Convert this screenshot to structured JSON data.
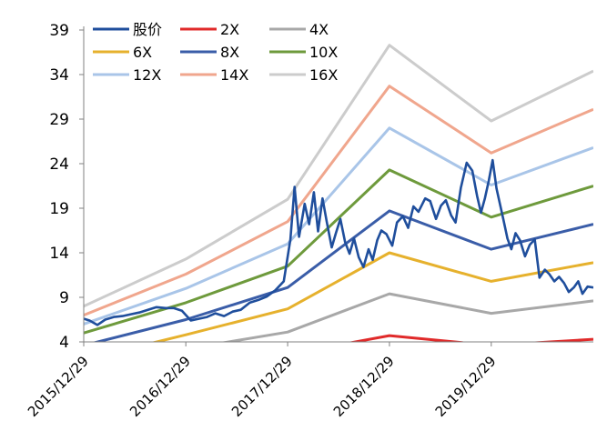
{
  "chart_data": {
    "type": "line",
    "title": "",
    "xlabel": "",
    "ylabel": "",
    "ylim": [
      4,
      39
    ],
    "yticks": [
      4,
      9,
      14,
      19,
      24,
      29,
      34,
      39
    ],
    "xticks": [
      "2015/12/29",
      "2016/12/29",
      "2017/12/29",
      "2018/12/29",
      "2019/12/29"
    ],
    "xlim": [
      "2015/12/29",
      "2020/12/29"
    ],
    "grid": false,
    "legend_position": "top-left",
    "price_series": {
      "name": "股价",
      "color": "#1f4e9c",
      "x": [
        "2015/12/29",
        "2016/01/19",
        "2016/02/16",
        "2016/03/15",
        "2016/04/15",
        "2016/05/16",
        "2016/06/15",
        "2016/07/15",
        "2016/08/15",
        "2016/09/15",
        "2016/10/17",
        "2016/11/15",
        "2016/12/15",
        "2017/01/16",
        "2017/02/15",
        "2017/03/15",
        "2017/04/14",
        "2017/05/15",
        "2017/06/15",
        "2017/07/14",
        "2017/08/15",
        "2017/09/15",
        "2017/10/16",
        "2017/11/15",
        "2017/12/15",
        "2018/01/08",
        "2018/01/23",
        "2018/02/08",
        "2018/02/28",
        "2018/03/16",
        "2018/04/02",
        "2018/04/17",
        "2018/05/03",
        "2018/05/18",
        "2018/06/05",
        "2018/06/20",
        "2018/07/06",
        "2018/07/23",
        "2018/08/08",
        "2018/08/24",
        "2018/09/10",
        "2018/09/27",
        "2018/10/15",
        "2018/10/30",
        "2018/11/15",
        "2018/11/30",
        "2018/12/18",
        "2019/01/08",
        "2019/01/25",
        "2019/02/15",
        "2019/03/06",
        "2019/03/25",
        "2019/04/12",
        "2019/05/06",
        "2019/05/24",
        "2019/06/14",
        "2019/07/02",
        "2019/07/19",
        "2019/08/07",
        "2019/08/23",
        "2019/09/11",
        "2019/10/02",
        "2019/10/22",
        "2019/11/08",
        "2019/11/22",
        "2019/12/06",
        "2019/12/20",
        "2020/01/03",
        "2020/01/17",
        "2020/02/10",
        "2020/02/25",
        "2020/03/10",
        "2020/03/25",
        "2020/04/10",
        "2020/04/28",
        "2020/05/15",
        "2020/06/02",
        "2020/06/19",
        "2020/07/08",
        "2020/07/24",
        "2020/08/11",
        "2020/08/28",
        "2020/09/15",
        "2020/10/02",
        "2020/10/20",
        "2020/11/05",
        "2020/11/20",
        "2020/12/08",
        "2020/12/29"
      ],
      "y": [
        6.6,
        6.4,
        5.9,
        6.5,
        6.8,
        6.9,
        7.1,
        7.3,
        7.6,
        7.9,
        7.8,
        7.8,
        7.5,
        6.4,
        6.6,
        6.8,
        7.2,
        6.9,
        7.4,
        7.6,
        8.4,
        8.7,
        9.1,
        9.8,
        10.8,
        15.5,
        21.4,
        15.8,
        19.5,
        17.2,
        20.8,
        16.4,
        20.1,
        17.5,
        14.6,
        16.2,
        17.8,
        15.2,
        13.9,
        15.6,
        13.5,
        12.4,
        14.4,
        13.2,
        15.4,
        16.5,
        16.1,
        14.8,
        17.4,
        18.1,
        16.8,
        19.2,
        18.6,
        20.1,
        19.8,
        17.8,
        19.3,
        19.9,
        18.2,
        17.4,
        21.3,
        24.1,
        23.2,
        20.4,
        18.5,
        20.1,
        22.1,
        24.4,
        21.2,
        17.8,
        15.6,
        14.4,
        16.2,
        15.4,
        13.6,
        14.9,
        15.5,
        11.2,
        12.1,
        11.6,
        10.8,
        11.3,
        10.6,
        9.6,
        10.1,
        10.8,
        9.4,
        10.2,
        10.1
      ]
    },
    "band_x": [
      "2015/12/29",
      "2016/12/29",
      "2017/12/29",
      "2018/12/29",
      "2019/12/29",
      "2020/12/29"
    ],
    "series": [
      {
        "name": "2X",
        "color": "#e02a2a",
        "values": [
          0.7,
          1.6,
          2.6,
          4.7,
          3.6,
          4.3
        ]
      },
      {
        "name": "4X",
        "color": "#a8a8a8",
        "values": [
          1.3,
          3.2,
          5.1,
          9.4,
          7.2,
          8.6
        ]
      },
      {
        "name": "6X",
        "color": "#e6b12d",
        "values": [
          2.0,
          4.8,
          7.7,
          14.0,
          10.8,
          12.9
        ]
      },
      {
        "name": "8X",
        "color": "#3a5da8",
        "values": [
          3.6,
          6.5,
          10.1,
          18.7,
          14.4,
          17.2
        ]
      },
      {
        "name": "10X",
        "color": "#6e9a3c",
        "values": [
          5.0,
          8.4,
          12.5,
          23.3,
          18.0,
          21.5
        ]
      },
      {
        "name": "12X",
        "color": "#a9c5e8",
        "values": [
          6.0,
          10.0,
          15.0,
          28.0,
          21.6,
          25.8
        ]
      },
      {
        "name": "14X",
        "color": "#f0a68d",
        "values": [
          7.0,
          11.6,
          17.5,
          32.7,
          25.2,
          30.1
        ]
      },
      {
        "name": "16X",
        "color": "#cccccc",
        "values": [
          8.0,
          13.3,
          20.0,
          37.3,
          28.8,
          34.4
        ]
      }
    ]
  }
}
